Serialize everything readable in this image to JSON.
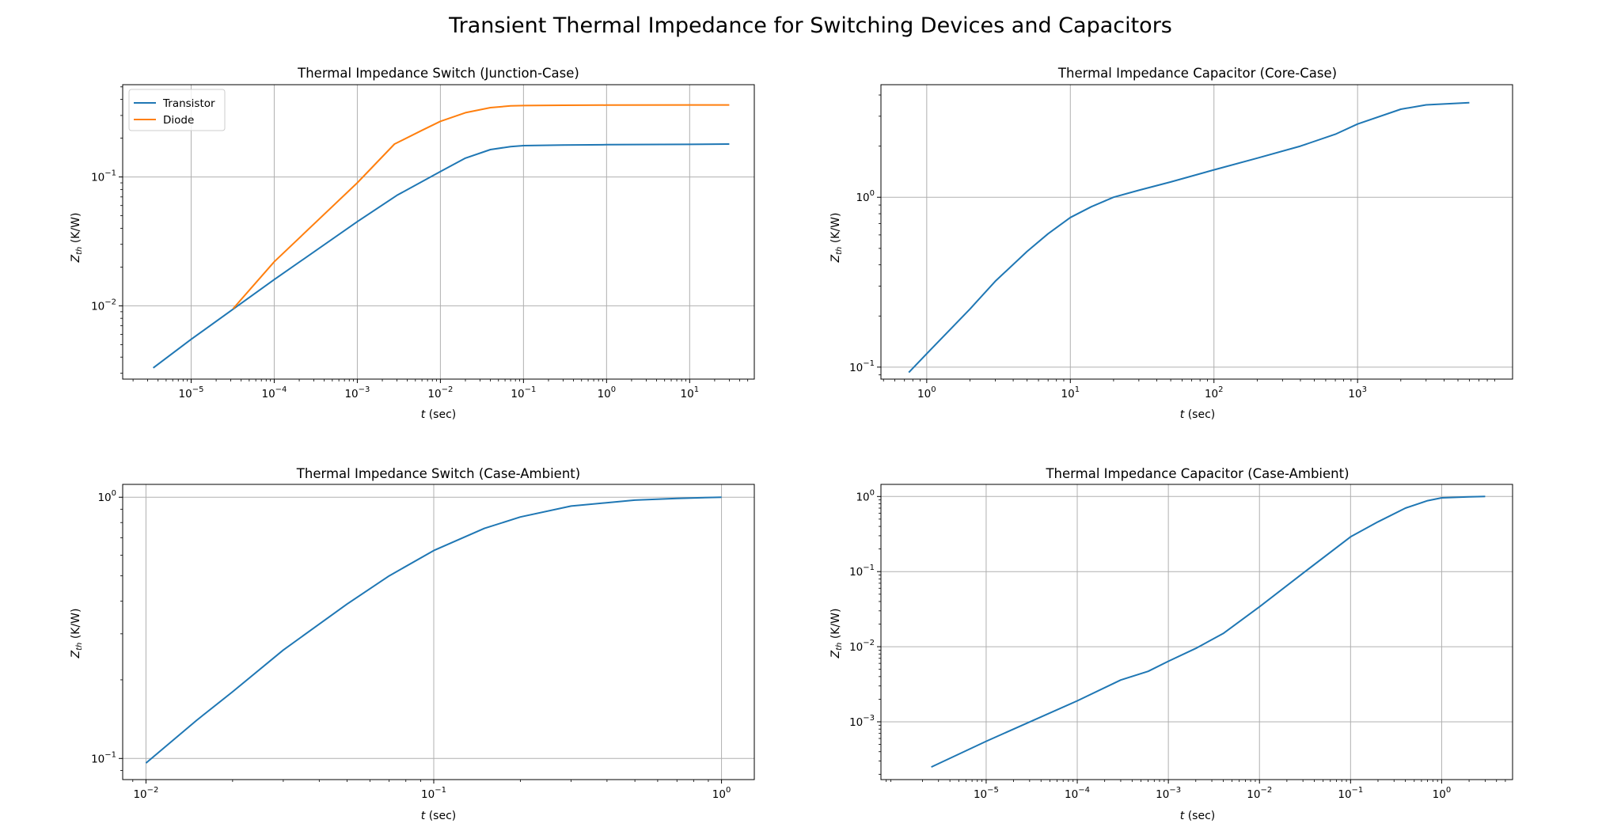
{
  "figure": {
    "title": "Transient Thermal Impedance for Switching Devices and Capacitors"
  },
  "colors": {
    "series1": "#1f77b4",
    "series2": "#ff7f0e",
    "grid": "#b0b0b0"
  },
  "chart_data": [
    {
      "id": "p1",
      "type": "line",
      "title": "Thermal Impedance Switch (Junction-Case)",
      "xlabel": "t (sec)",
      "ylabel": "Z_th (K/W)",
      "xscale": "log",
      "yscale": "log",
      "xlim": [
        1.5e-06,
        60
      ],
      "ylim": [
        0.0027,
        0.52
      ],
      "xticks": [
        {
          "v": 1e-05,
          "e": "−5"
        },
        {
          "v": 0.0001,
          "e": "−4"
        },
        {
          "v": 0.001,
          "e": "−3"
        },
        {
          "v": 0.01,
          "e": "−2"
        },
        {
          "v": 0.1,
          "e": "−1"
        },
        {
          "v": 1,
          "e": "0"
        },
        {
          "v": 10,
          "e": "1"
        }
      ],
      "yticks": [
        {
          "v": 0.01,
          "e": "−2"
        },
        {
          "v": 0.1,
          "e": "−1"
        }
      ],
      "grid": true,
      "legend": "upper left",
      "series": [
        {
          "name": "Transistor",
          "color": "#1f77b4",
          "x": [
            3.5e-06,
            1e-05,
            0.0001,
            0.001,
            0.003,
            0.01,
            0.02,
            0.04,
            0.07,
            0.1,
            0.3,
            1,
            10,
            30
          ],
          "y": [
            0.0033,
            0.0055,
            0.016,
            0.045,
            0.072,
            0.11,
            0.14,
            0.163,
            0.172,
            0.175,
            0.177,
            0.178,
            0.179,
            0.18
          ]
        },
        {
          "name": "Diode",
          "color": "#ff7f0e",
          "x": [
            3.2e-05,
            0.0001,
            0.001,
            0.0028,
            0.006,
            0.01,
            0.02,
            0.04,
            0.07,
            0.1,
            0.3,
            1,
            10,
            30
          ],
          "y": [
            0.0095,
            0.022,
            0.09,
            0.18,
            0.23,
            0.27,
            0.315,
            0.345,
            0.356,
            0.358,
            0.36,
            0.361,
            0.362,
            0.362
          ]
        }
      ]
    },
    {
      "id": "p2",
      "type": "line",
      "title": "Thermal Impedance Capacitor (Core-Case)",
      "xlabel": "t (sec)",
      "ylabel": "Z_th (K/W)",
      "xscale": "log",
      "yscale": "log",
      "xlim": [
        0.48,
        12000
      ],
      "ylim": [
        0.085,
        4.6
      ],
      "xticks": [
        {
          "v": 1,
          "e": "0"
        },
        {
          "v": 10,
          "e": "1"
        },
        {
          "v": 100,
          "e": "2"
        },
        {
          "v": 1000,
          "e": "3"
        }
      ],
      "yticks": [
        {
          "v": 0.1,
          "e": "−1"
        },
        {
          "v": 1,
          "e": "0"
        }
      ],
      "grid": true,
      "series": [
        {
          "name": "",
          "color": "#1f77b4",
          "x": [
            0.75,
            1,
            2,
            3,
            5,
            7,
            10,
            14,
            20,
            30,
            50,
            100,
            200,
            400,
            700,
            1000,
            2000,
            3000,
            6000
          ],
          "y": [
            0.093,
            0.12,
            0.22,
            0.32,
            0.48,
            0.61,
            0.76,
            0.88,
            1.0,
            1.1,
            1.23,
            1.45,
            1.7,
            2.0,
            2.35,
            2.7,
            3.3,
            3.5,
            3.6
          ]
        }
      ]
    },
    {
      "id": "p3",
      "type": "line",
      "title": "Thermal Impedance Switch (Case-Ambient)",
      "xlabel": "t (sec)",
      "ylabel": "Z_th (K/W)",
      "xscale": "log",
      "yscale": "log",
      "xlim": [
        0.0083,
        1.3
      ],
      "ylim": [
        0.083,
        1.12
      ],
      "xticks": [
        {
          "v": 0.01,
          "e": "−2"
        },
        {
          "v": 0.1,
          "e": "−1"
        },
        {
          "v": 1,
          "e": "0"
        }
      ],
      "yticks": [
        {
          "v": 0.1,
          "e": "−1"
        },
        {
          "v": 1,
          "e": "0"
        }
      ],
      "grid": true,
      "series": [
        {
          "name": "",
          "color": "#1f77b4",
          "x": [
            0.01,
            0.015,
            0.02,
            0.03,
            0.05,
            0.07,
            0.1,
            0.15,
            0.2,
            0.3,
            0.5,
            0.7,
            1
          ],
          "y": [
            0.096,
            0.14,
            0.18,
            0.26,
            0.39,
            0.5,
            0.625,
            0.76,
            0.84,
            0.925,
            0.975,
            0.99,
            1.0
          ]
        }
      ]
    },
    {
      "id": "p4",
      "type": "line",
      "title": "Thermal Impedance Capacitor (Case-Ambient)",
      "xlabel": "t (sec)",
      "ylabel": "Z_th (K/W)",
      "xscale": "log",
      "yscale": "log",
      "xlim": [
        7e-07,
        6
      ],
      "ylim": [
        0.00017,
        1.45
      ],
      "xticks": [
        {
          "v": 1e-05,
          "e": "−5"
        },
        {
          "v": 0.0001,
          "e": "−4"
        },
        {
          "v": 0.001,
          "e": "−3"
        },
        {
          "v": 0.01,
          "e": "−2"
        },
        {
          "v": 0.1,
          "e": "−1"
        },
        {
          "v": 1,
          "e": "0"
        }
      ],
      "yticks": [
        {
          "v": 0.001,
          "e": "−3"
        },
        {
          "v": 0.01,
          "e": "−2"
        },
        {
          "v": 0.1,
          "e": "−1"
        },
        {
          "v": 1,
          "e": "0"
        }
      ],
      "grid": true,
      "series": [
        {
          "name": "",
          "color": "#1f77b4",
          "x": [
            2.5e-06,
            1e-05,
            0.0001,
            0.0003,
            0.0006,
            0.001,
            0.002,
            0.004,
            0.01,
            0.03,
            0.1,
            0.2,
            0.4,
            0.7,
            1,
            2,
            3
          ],
          "y": [
            0.00025,
            0.00055,
            0.0019,
            0.0036,
            0.0047,
            0.0064,
            0.0095,
            0.015,
            0.034,
            0.095,
            0.29,
            0.46,
            0.7,
            0.88,
            0.96,
            0.99,
            1.0
          ]
        }
      ]
    }
  ]
}
